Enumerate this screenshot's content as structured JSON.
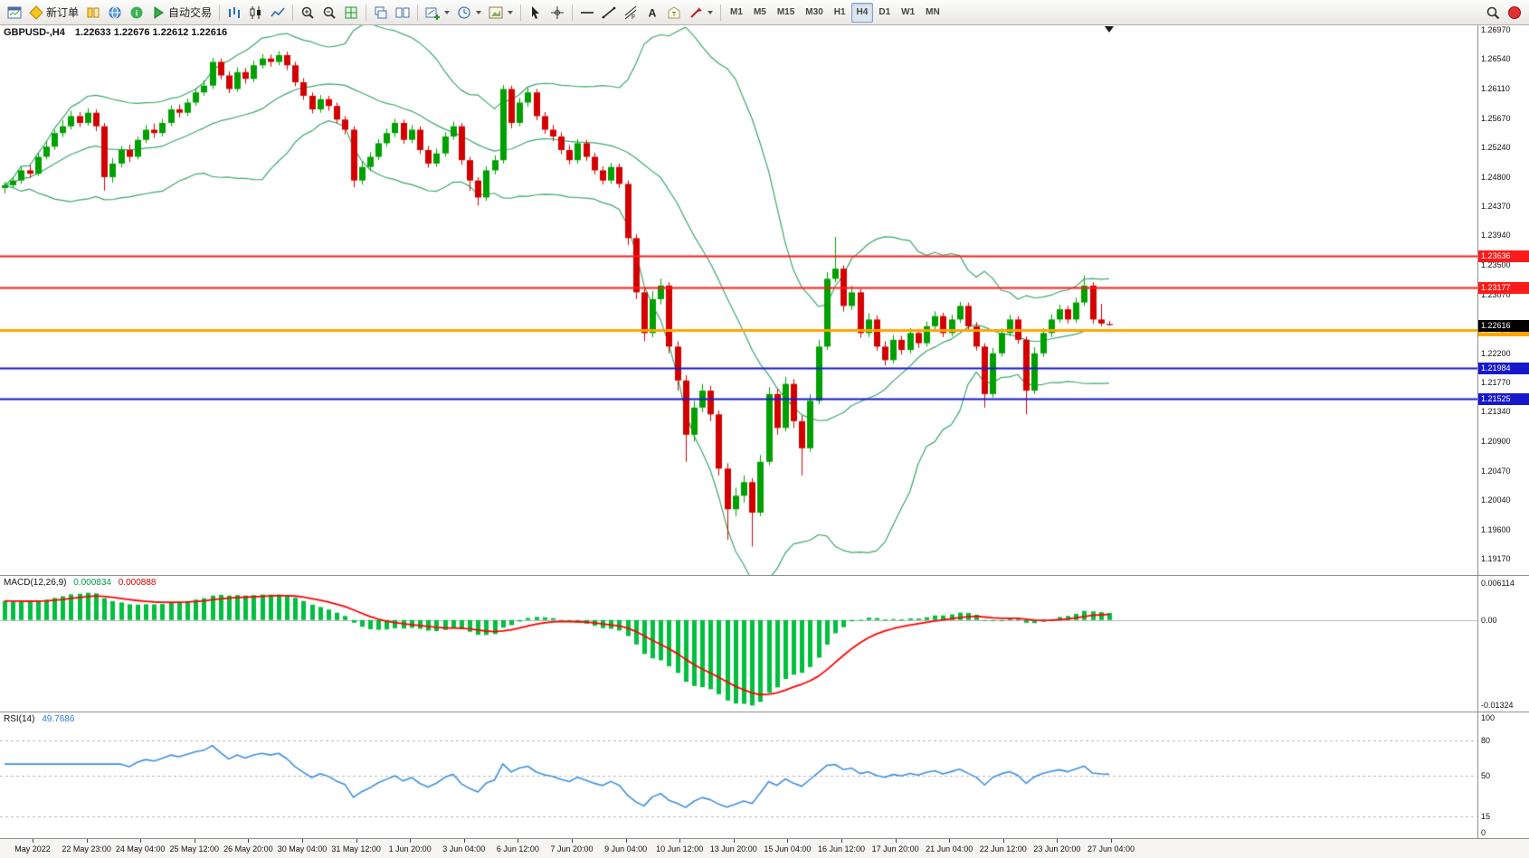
{
  "toolbar": {
    "groups": [
      {
        "name": "main",
        "buttons": [
          {
            "name": "chart-window",
            "icon": "window"
          },
          {
            "name": "new-order",
            "icon": "order",
            "label": "新订单"
          },
          {
            "name": "terminal",
            "icon": "book"
          },
          {
            "name": "market-watch",
            "icon": "globe"
          },
          {
            "name": "help",
            "icon": "info"
          },
          {
            "name": "auto-trading",
            "icon": "play",
            "label": "自动交易"
          }
        ]
      },
      {
        "name": "chart-type",
        "buttons": [
          {
            "name": "bar-chart",
            "icon": "bars"
          },
          {
            "name": "candlestick-chart",
            "icon": "candles"
          },
          {
            "name": "line-chart",
            "icon": "line"
          }
        ]
      },
      {
        "name": "zoom",
        "buttons": [
          {
            "name": "zoom-in",
            "icon": "zoom-in"
          },
          {
            "name": "zoom-out",
            "icon": "zoom-out"
          },
          {
            "name": "tile-windows",
            "icon": "grid"
          }
        ]
      },
      {
        "name": "windows",
        "buttons": [
          {
            "name": "cascade-windows",
            "icon": "cascade"
          },
          {
            "name": "tile-vertical",
            "icon": "tilev"
          }
        ]
      },
      {
        "name": "new-objects",
        "buttons": [
          {
            "name": "new-chart",
            "icon": "newchart",
            "dropdown": true
          },
          {
            "name": "chart-periods",
            "icon": "clock",
            "dropdown": true
          },
          {
            "name": "chart-template",
            "icon": "template",
            "dropdown": true
          }
        ]
      },
      {
        "name": "cursor",
        "buttons": [
          {
            "name": "cursor",
            "icon": "cursor"
          },
          {
            "name": "crosshair",
            "icon": "crosshair"
          }
        ]
      },
      {
        "name": "draw",
        "buttons": [
          {
            "name": "horizontal-line",
            "icon": "hline"
          },
          {
            "name": "trendline",
            "icon": "tline"
          },
          {
            "name": "fibonacci",
            "icon": "fibo"
          },
          {
            "name": "text-tool",
            "icon": "text"
          },
          {
            "name": "text-label",
            "icon": "label"
          },
          {
            "name": "shapes",
            "icon": "shapes",
            "dropdown": true
          }
        ]
      },
      {
        "name": "timeframes",
        "buttons": [
          {
            "name": "tf-m1",
            "text": "M1"
          },
          {
            "name": "tf-m5",
            "text": "M5"
          },
          {
            "name": "tf-m15",
            "text": "M15"
          },
          {
            "name": "tf-m30",
            "text": "M30"
          },
          {
            "name": "tf-h1",
            "text": "H1"
          },
          {
            "name": "tf-h4",
            "text": "H4",
            "active": true
          },
          {
            "name": "tf-d1",
            "text": "D1"
          },
          {
            "name": "tf-w1",
            "text": "W1"
          },
          {
            "name": "tf-mn",
            "text": "MN"
          }
        ]
      }
    ],
    "right_buttons": [
      {
        "name": "search",
        "icon": "search"
      },
      {
        "name": "status-dot",
        "icon": "reddot"
      }
    ]
  },
  "chart_data": {
    "type": "candlestick",
    "title": {
      "symbol": "GBPUSD-,H4",
      "ohlc": "1.22633 1.22676 1.22612 1.22616"
    },
    "price_range": [
      1.2704,
      1.1893
    ],
    "price_axis": [
      "1.26970",
      "1.26540",
      "1.26110",
      "1.25670",
      "1.25240",
      "1.24800",
      "1.24370",
      "1.23940",
      "1.23500",
      "1.23070",
      "1.22640",
      "1.22200",
      "1.21770",
      "1.21340",
      "1.20900",
      "1.20470",
      "1.20040",
      "1.19600",
      "1.19170"
    ],
    "time_axis": [
      "May 2022",
      "22 May 23:00",
      "24 May 04:00",
      "25 May 12:00",
      "26 May 20:00",
      "30 May 04:00",
      "31 May 12:00",
      "1 Jun 20:00",
      "3 Jun 04:00",
      "6 Jun 12:00",
      "7 Jun 20:00",
      "9 Jun 04:00",
      "10 Jun 12:00",
      "13 Jun 20:00",
      "15 Jun 04:00",
      "16 Jun 12:00",
      "17 Jun 20:00",
      "21 Jun 04:00",
      "22 Jun 12:00",
      "23 Jun 20:00",
      "27 Jun 04:00"
    ],
    "bollinger": {
      "period": 20,
      "deviation": 2,
      "color": "#3aa76d"
    },
    "candle_colors": {
      "bull": "#00a000",
      "bear": "#d40000"
    },
    "levels": [
      {
        "value": 1.23636,
        "label": "1.23636",
        "color": "#ff1a1a",
        "line_width": 2
      },
      {
        "value": 1.23177,
        "label": "1.23177",
        "color": "#ff1a1a",
        "line_width": 2
      },
      {
        "value": 1.22546,
        "label": "1.22546",
        "color": "#ffa500",
        "line_width": 3
      },
      {
        "value": 1.21984,
        "label": "1.21984",
        "color": "#1717cc",
        "line_width": 2
      },
      {
        "value": 1.21525,
        "label": "1.21525",
        "color": "#1717cc",
        "line_width": 2
      }
    ],
    "current_price": {
      "value": 1.22616,
      "label": "1.22616",
      "bg": "#000000"
    },
    "indicators": [
      {
        "id": "macd",
        "name_label": "MACD(12,26,9)",
        "value1": "0.000834",
        "value2": "0.000888",
        "params": [
          12,
          26,
          9
        ],
        "axis_labels": [
          "0.006114",
          "0.00",
          "-0.01324"
        ],
        "histogram_color": "#00bf3f",
        "signal_color": "#ff0000"
      },
      {
        "id": "rsi",
        "name_label": "RSI(14)",
        "value": "49.7686",
        "period": 14,
        "levels": [
          80,
          50,
          15
        ],
        "axis_labels": [
          100,
          80,
          50,
          15,
          0
        ],
        "line_color": "#3d8fe0"
      }
    ],
    "candles": [
      [
        1.2464,
        1.2473,
        1.2456,
        1.2468
      ],
      [
        1.2468,
        1.248,
        1.2464,
        1.2475
      ],
      [
        1.2475,
        1.2495,
        1.247,
        1.249
      ],
      [
        1.249,
        1.2498,
        1.2479,
        1.2485
      ],
      [
        1.2485,
        1.2516,
        1.2482,
        1.251
      ],
      [
        1.251,
        1.2533,
        1.2506,
        1.2525
      ],
      [
        1.2525,
        1.255,
        1.252,
        1.2545
      ],
      [
        1.2545,
        1.2564,
        1.2539,
        1.2555
      ],
      [
        1.2555,
        1.2578,
        1.255,
        1.257
      ],
      [
        1.257,
        1.2576,
        1.2554,
        1.256
      ],
      [
        1.256,
        1.2582,
        1.2556,
        1.2575
      ],
      [
        1.2575,
        1.258,
        1.2548,
        1.2555
      ],
      [
        1.2555,
        1.256,
        1.246,
        1.248
      ],
      [
        1.248,
        1.2508,
        1.2472,
        1.25
      ],
      [
        1.25,
        1.2526,
        1.2494,
        1.252
      ],
      [
        1.252,
        1.2528,
        1.2502,
        1.251
      ],
      [
        1.251,
        1.254,
        1.2506,
        1.2535
      ],
      [
        1.2535,
        1.2557,
        1.253,
        1.255
      ],
      [
        1.255,
        1.2559,
        1.2538,
        1.2545
      ],
      [
        1.2545,
        1.2566,
        1.254,
        1.256
      ],
      [
        1.256,
        1.2586,
        1.2555,
        1.258
      ],
      [
        1.258,
        1.2587,
        1.2568,
        1.2575
      ],
      [
        1.2575,
        1.2596,
        1.257,
        1.259
      ],
      [
        1.259,
        1.2611,
        1.2585,
        1.2605
      ],
      [
        1.2605,
        1.2623,
        1.26,
        1.2615
      ],
      [
        1.2615,
        1.2656,
        1.261,
        1.265
      ],
      [
        1.265,
        1.2655,
        1.2624,
        1.263
      ],
      [
        1.263,
        1.2636,
        1.2604,
        1.261
      ],
      [
        1.261,
        1.2642,
        1.2606,
        1.2635
      ],
      [
        1.2635,
        1.2641,
        1.2618,
        1.2625
      ],
      [
        1.2625,
        1.2652,
        1.262,
        1.2645
      ],
      [
        1.2645,
        1.2662,
        1.264,
        1.2655
      ],
      [
        1.2655,
        1.2661,
        1.2643,
        1.265
      ],
      [
        1.265,
        1.2666,
        1.2645,
        1.266
      ],
      [
        1.266,
        1.2665,
        1.2638,
        1.2645
      ],
      [
        1.2645,
        1.265,
        1.2614,
        1.262
      ],
      [
        1.262,
        1.2626,
        1.2594,
        1.26
      ],
      [
        1.26,
        1.2605,
        1.2574,
        1.258
      ],
      [
        1.258,
        1.2601,
        1.2575,
        1.2595
      ],
      [
        1.2595,
        1.26,
        1.2578,
        1.2585
      ],
      [
        1.2585,
        1.259,
        1.2559,
        1.2565
      ],
      [
        1.2565,
        1.257,
        1.2543,
        1.255
      ],
      [
        1.255,
        1.2555,
        1.2465,
        1.2475
      ],
      [
        1.2475,
        1.2503,
        1.2469,
        1.2495
      ],
      [
        1.2495,
        1.2517,
        1.2489,
        1.251
      ],
      [
        1.251,
        1.2536,
        1.2505,
        1.253
      ],
      [
        1.253,
        1.2552,
        1.2525,
        1.2545
      ],
      [
        1.2545,
        1.2566,
        1.2539,
        1.256
      ],
      [
        1.256,
        1.2565,
        1.2529,
        1.2535
      ],
      [
        1.2535,
        1.2557,
        1.253,
        1.255
      ],
      [
        1.255,
        1.2555,
        1.2514,
        1.252
      ],
      [
        1.252,
        1.2526,
        1.2494,
        1.25
      ],
      [
        1.25,
        1.2522,
        1.2495,
        1.2515
      ],
      [
        1.2515,
        1.2546,
        1.251,
        1.254
      ],
      [
        1.254,
        1.2562,
        1.2535,
        1.2555
      ],
      [
        1.2555,
        1.256,
        1.2498,
        1.2505
      ],
      [
        1.2505,
        1.251,
        1.246,
        1.2475
      ],
      [
        1.2475,
        1.248,
        1.2438,
        1.245
      ],
      [
        1.245,
        1.2496,
        1.2445,
        1.249
      ],
      [
        1.249,
        1.2512,
        1.2484,
        1.2505
      ],
      [
        1.2505,
        1.2616,
        1.25,
        1.261
      ],
      [
        1.261,
        1.2615,
        1.2552,
        1.256
      ],
      [
        1.256,
        1.2597,
        1.2555,
        1.259
      ],
      [
        1.259,
        1.2612,
        1.2584,
        1.2605
      ],
      [
        1.2605,
        1.261,
        1.2564,
        1.257
      ],
      [
        1.257,
        1.2576,
        1.2544,
        1.255
      ],
      [
        1.255,
        1.2557,
        1.2533,
        1.254
      ],
      [
        1.254,
        1.2546,
        1.2514,
        1.252
      ],
      [
        1.252,
        1.2527,
        1.2499,
        1.2505
      ],
      [
        1.2505,
        1.2536,
        1.25,
        1.253
      ],
      [
        1.253,
        1.2535,
        1.2504,
        1.251
      ],
      [
        1.251,
        1.2516,
        1.2484,
        1.249
      ],
      [
        1.249,
        1.2496,
        1.2469,
        1.2475
      ],
      [
        1.2475,
        1.2501,
        1.247,
        1.2495
      ],
      [
        1.2495,
        1.25,
        1.2464,
        1.247
      ],
      [
        1.247,
        1.2475,
        1.238,
        1.239
      ],
      [
        1.239,
        1.2396,
        1.23,
        1.231
      ],
      [
        1.231,
        1.2316,
        1.2238,
        1.225
      ],
      [
        1.225,
        1.2312,
        1.2244,
        1.23
      ],
      [
        1.23,
        1.233,
        1.2292,
        1.232
      ],
      [
        1.232,
        1.2325,
        1.222,
        1.223
      ],
      [
        1.223,
        1.2238,
        1.2165,
        1.218
      ],
      [
        1.218,
        1.2188,
        1.206,
        1.21
      ],
      [
        1.21,
        1.215,
        1.209,
        1.214
      ],
      [
        1.214,
        1.2175,
        1.2133,
        1.2165
      ],
      [
        1.2165,
        1.2172,
        1.212,
        1.213
      ],
      [
        1.213,
        1.2136,
        1.204,
        1.205
      ],
      [
        1.205,
        1.2058,
        1.1945,
        1.199
      ],
      [
        1.199,
        1.2022,
        1.198,
        1.201
      ],
      [
        1.201,
        1.204,
        1.2,
        1.203
      ],
      [
        1.203,
        1.2036,
        1.1935,
        1.1985
      ],
      [
        1.1985,
        1.207,
        1.198,
        1.206
      ],
      [
        1.206,
        1.217,
        1.2055,
        1.216
      ],
      [
        1.216,
        1.2168,
        1.21,
        1.211
      ],
      [
        1.211,
        1.2185,
        1.2105,
        1.2175
      ],
      [
        1.2175,
        1.2182,
        1.211,
        1.212
      ],
      [
        1.212,
        1.2128,
        1.204,
        1.208
      ],
      [
        1.208,
        1.216,
        1.2075,
        1.215
      ],
      [
        1.215,
        1.224,
        1.2145,
        1.223
      ],
      [
        1.223,
        1.234,
        1.2225,
        1.233
      ],
      [
        1.233,
        1.2392,
        1.2325,
        1.2345
      ],
      [
        1.2345,
        1.235,
        1.2282,
        1.229
      ],
      [
        1.229,
        1.232,
        1.2284,
        1.231
      ],
      [
        1.231,
        1.2315,
        1.2243,
        1.225
      ],
      [
        1.225,
        1.2279,
        1.2244,
        1.227
      ],
      [
        1.227,
        1.2276,
        1.2224,
        1.223
      ],
      [
        1.223,
        1.2238,
        1.2202,
        1.221
      ],
      [
        1.221,
        1.2247,
        1.2205,
        1.224
      ],
      [
        1.224,
        1.2246,
        1.2218,
        1.2225
      ],
      [
        1.2225,
        1.2257,
        1.222,
        1.225
      ],
      [
        1.225,
        1.2256,
        1.2228,
        1.2235
      ],
      [
        1.2235,
        1.2267,
        1.223,
        1.226
      ],
      [
        1.226,
        1.2282,
        1.2255,
        1.2275
      ],
      [
        1.2275,
        1.228,
        1.2244,
        1.225
      ],
      [
        1.225,
        1.2277,
        1.2245,
        1.227
      ],
      [
        1.227,
        1.2296,
        1.2265,
        1.229
      ],
      [
        1.229,
        1.2295,
        1.2254,
        1.226
      ],
      [
        1.226,
        1.2266,
        1.2224,
        1.223
      ],
      [
        1.223,
        1.2235,
        1.214,
        1.216
      ],
      [
        1.216,
        1.2228,
        1.2155,
        1.222
      ],
      [
        1.222,
        1.2257,
        1.2215,
        1.225
      ],
      [
        1.225,
        1.2277,
        1.2245,
        1.227
      ],
      [
        1.227,
        1.2275,
        1.2234,
        1.224
      ],
      [
        1.224,
        1.2245,
        1.213,
        1.2165
      ],
      [
        1.2165,
        1.2229,
        1.216,
        1.222
      ],
      [
        1.222,
        1.2257,
        1.2215,
        1.225
      ],
      [
        1.225,
        1.2278,
        1.2244,
        1.227
      ],
      [
        1.227,
        1.2292,
        1.2265,
        1.2285
      ],
      [
        1.2285,
        1.229,
        1.2264,
        1.227
      ],
      [
        1.227,
        1.2302,
        1.2265,
        1.2295
      ],
      [
        1.2295,
        1.2335,
        1.229,
        1.232
      ],
      [
        1.232,
        1.2325,
        1.2264,
        1.227
      ],
      [
        1.227,
        1.2293,
        1.226,
        1.2264
      ],
      [
        1.22633,
        1.22676,
        1.22612,
        1.22616
      ]
    ]
  }
}
